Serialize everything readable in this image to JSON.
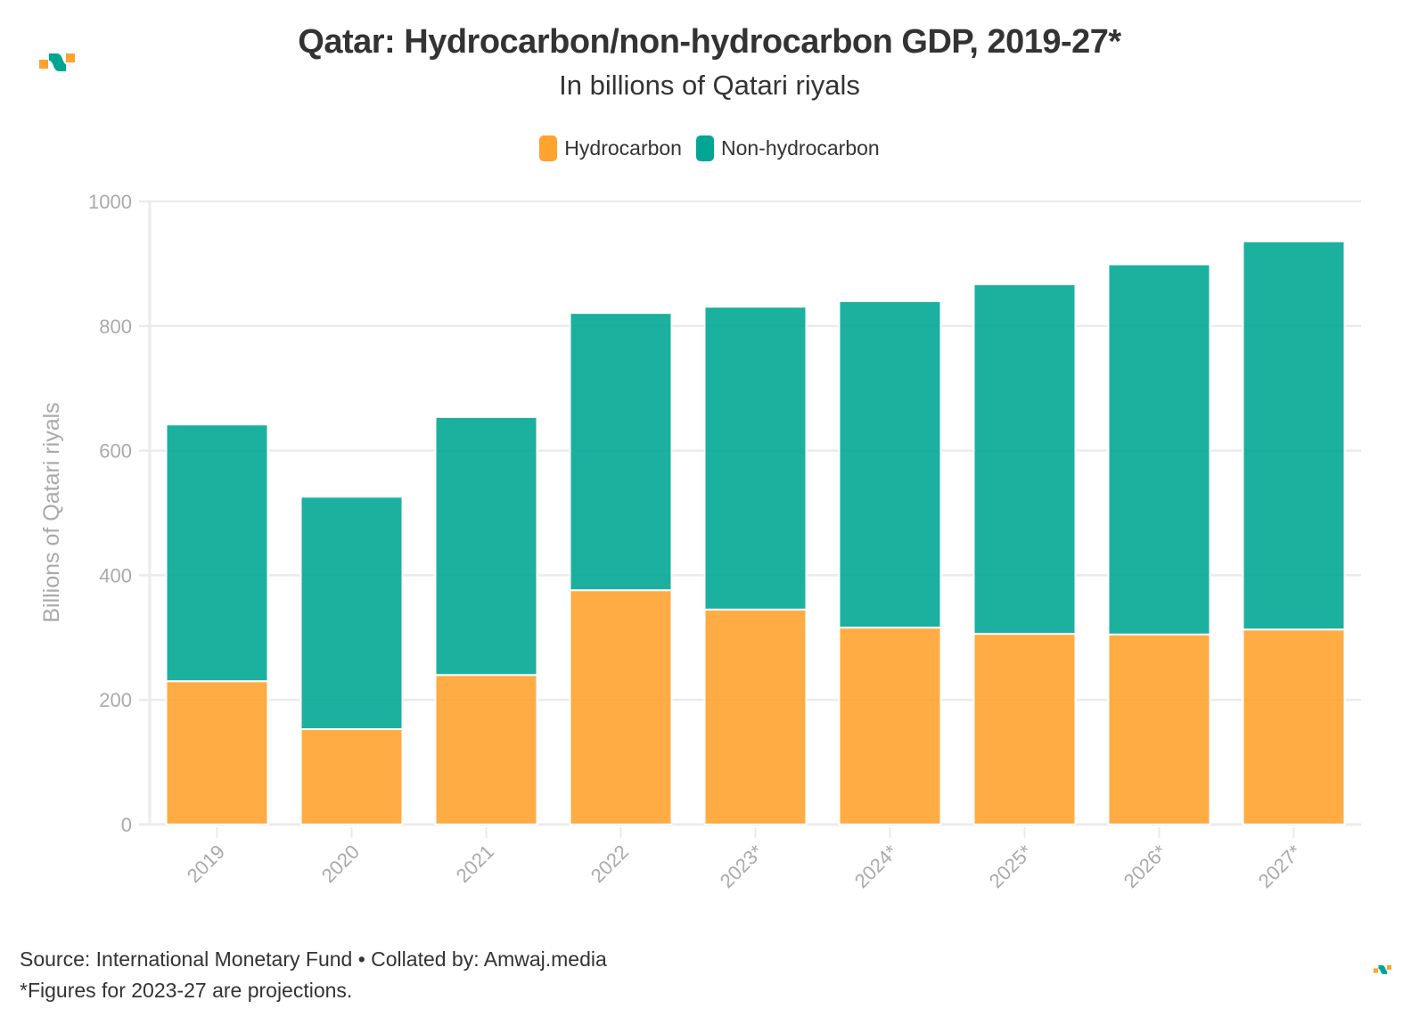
{
  "header": {
    "title": "Qatar: Hydrocarbon/non-hydrocarbon GDP, 2019-27*",
    "subtitle": "In billions of Qatari riyals"
  },
  "brand": {
    "logo_icon": "amwaj-logo-icon",
    "colors": {
      "orange": "#FFA22E",
      "teal": "#00A693"
    }
  },
  "footer": {
    "source": "Source: International Monetary Fund • Collated by: Amwaj.media",
    "note": "*Figures for 2023-27 are projections."
  },
  "chart_data": {
    "type": "bar",
    "stacked": true,
    "title": "Qatar: Hydrocarbon/non-hydrocarbon GDP, 2019-27*",
    "subtitle": "In billions of Qatari riyals",
    "xlabel": "",
    "ylabel": "Billions of Qatari riyals",
    "ylim": [
      0,
      1000
    ],
    "yticks": [
      0,
      200,
      400,
      600,
      800,
      1000
    ],
    "grid": true,
    "legend_position": "top-center",
    "categories": [
      "2019",
      "2020",
      "2021",
      "2022",
      "2023*",
      "2024*",
      "2025*",
      "2026*",
      "2027*"
    ],
    "series": [
      {
        "name": "Hydrocarbon",
        "color": "#FFA22E",
        "values": [
          230,
          153,
          240,
          376,
          345,
          316,
          306,
          305,
          313
        ]
      },
      {
        "name": "Non-hydrocarbon",
        "color": "#00A693",
        "values": [
          412,
          373,
          414,
          445,
          486,
          524,
          561,
          594,
          623
        ]
      }
    ]
  }
}
